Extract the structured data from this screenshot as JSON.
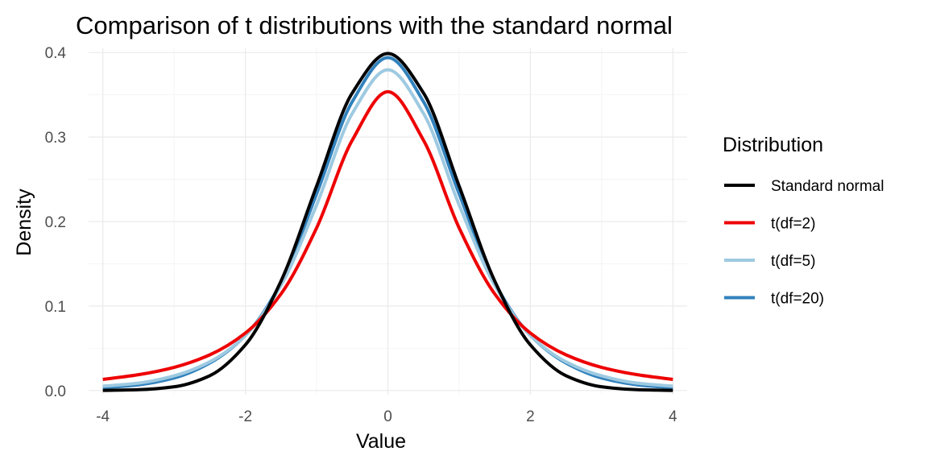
{
  "chart_data": {
    "type": "line",
    "title": "Comparison of t distributions with the standard normal",
    "xlabel": "Value",
    "ylabel": "Density",
    "xlim": [
      -4.2,
      4.2
    ],
    "ylim": [
      -0.005,
      0.405
    ],
    "x_ticks": [
      -4,
      -2,
      0,
      2,
      4
    ],
    "y_ticks": [
      0.0,
      0.1,
      0.2,
      0.3,
      0.4
    ],
    "x_tick_labels": [
      "-4",
      "-2",
      "0",
      "2",
      "4"
    ],
    "y_tick_labels": [
      "0.0",
      "0.1",
      "0.2",
      "0.3",
      "0.4"
    ],
    "grid": true,
    "legend_position": "right",
    "legend_title": "Distribution",
    "series": [
      {
        "name": "Standard normal",
        "color": "#000000",
        "x": [
          -4.0,
          -3.5,
          -3.0,
          -2.5,
          -2.0,
          -1.5,
          -1.0,
          -0.5,
          0.0,
          0.5,
          1.0,
          1.5,
          2.0,
          2.5,
          3.0,
          3.5,
          4.0
        ],
        "y": [
          0.0001,
          0.0009,
          0.0044,
          0.0175,
          0.054,
          0.1295,
          0.242,
          0.3521,
          0.3989,
          0.3521,
          0.242,
          0.1295,
          0.054,
          0.0175,
          0.0044,
          0.0009,
          0.0001
        ]
      },
      {
        "name": "t(df=2)",
        "color": "#ee0000",
        "x": [
          -4.0,
          -3.5,
          -3.0,
          -2.5,
          -2.0,
          -1.5,
          -1.0,
          -0.5,
          0.0,
          0.5,
          1.0,
          1.5,
          2.0,
          2.5,
          3.0,
          3.5,
          4.0
        ],
        "y": [
          0.0131,
          0.0187,
          0.0274,
          0.0422,
          0.068,
          0.1143,
          0.1925,
          0.2962,
          0.3536,
          0.2962,
          0.1925,
          0.1143,
          0.068,
          0.0422,
          0.0274,
          0.0187,
          0.0131
        ]
      },
      {
        "name": "t(df=5)",
        "color": "#9ecae1",
        "x": [
          -4.0,
          -3.5,
          -3.0,
          -2.5,
          -2.0,
          -1.5,
          -1.0,
          -0.5,
          0.0,
          0.5,
          1.0,
          1.5,
          2.0,
          2.5,
          3.0,
          3.5,
          4.0
        ],
        "y": [
          0.0051,
          0.0087,
          0.0173,
          0.0339,
          0.0651,
          0.1245,
          0.2197,
          0.3279,
          0.3796,
          0.3279,
          0.2197,
          0.1245,
          0.0651,
          0.0339,
          0.0173,
          0.0087,
          0.0051
        ]
      },
      {
        "name": "t(df=20)",
        "color": "#3182bd",
        "x": [
          -4.0,
          -3.5,
          -3.0,
          -2.5,
          -2.0,
          -1.5,
          -1.0,
          -0.5,
          0.0,
          0.5,
          1.0,
          1.5,
          2.0,
          2.5,
          3.0,
          3.5,
          4.0
        ],
        "y": [
          0.0032,
          0.0067,
          0.0148,
          0.0325,
          0.0652,
          0.1275,
          0.2328,
          0.3418,
          0.394,
          0.3418,
          0.2328,
          0.1275,
          0.0652,
          0.0325,
          0.0148,
          0.0067,
          0.0032
        ]
      }
    ]
  }
}
